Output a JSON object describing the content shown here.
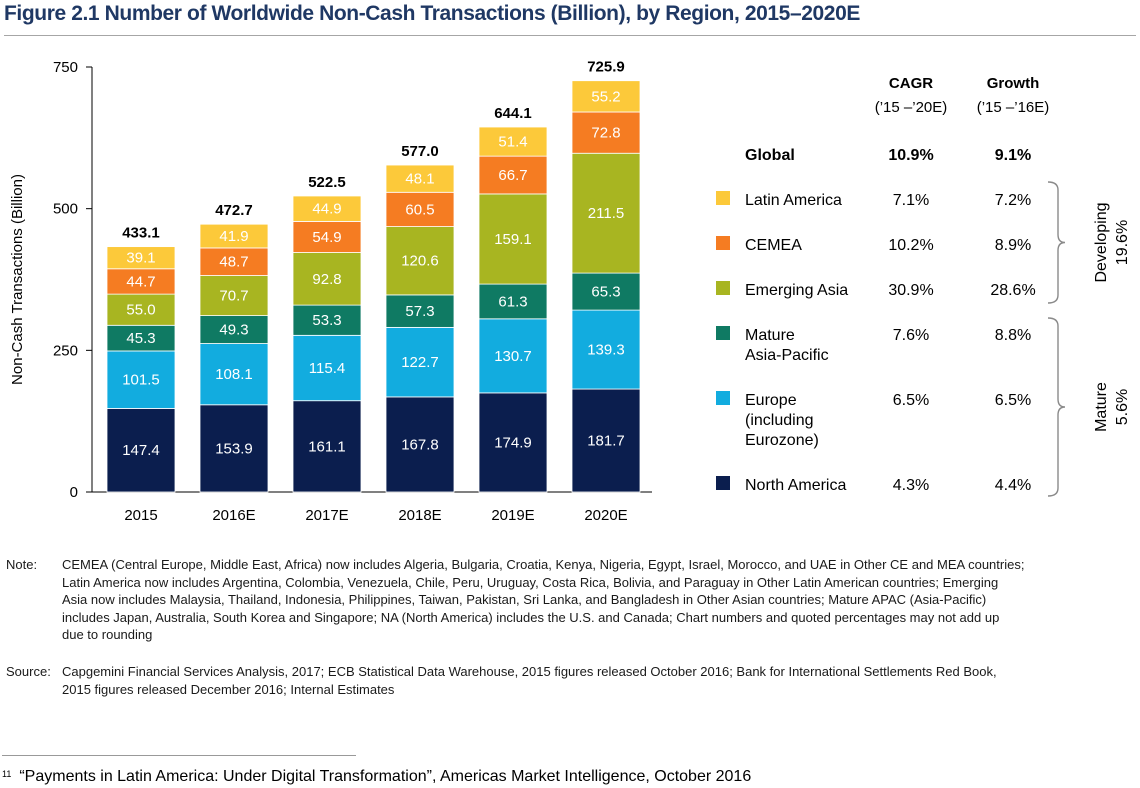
{
  "title": "Figure 2.1 Number of Worldwide Non-Cash Transactions (Billion), by Region, 2015–2020E",
  "colors": {
    "North America": "#0b1e4e",
    "Europe": "#12acdf",
    "Mature Asia-Pacific": "#0f7a63",
    "Emerging Asia": "#a8b521",
    "CEMEA": "#f57c22",
    "Latin America": "#fcc93a"
  },
  "chart_data": {
    "type": "bar",
    "stacked": true,
    "categories": [
      "2015",
      "2016E",
      "2017E",
      "2018E",
      "2019E",
      "2020E"
    ],
    "ylabel": "Non-Cash Transactions (Billion)",
    "ylim": [
      0,
      750
    ],
    "yticks": [
      0,
      250,
      500,
      750
    ],
    "totals": [
      "433.1",
      "472.7",
      "522.5",
      "577.0",
      "644.1",
      "725.9"
    ],
    "series": [
      {
        "name": "North America",
        "values": [
          147.4,
          153.9,
          161.1,
          167.8,
          174.9,
          181.7
        ]
      },
      {
        "name": "Europe",
        "values": [
          101.5,
          108.1,
          115.4,
          122.7,
          130.7,
          139.3
        ]
      },
      {
        "name": "Mature Asia-Pacific",
        "values": [
          45.3,
          49.3,
          53.3,
          57.3,
          61.3,
          65.3
        ]
      },
      {
        "name": "Emerging Asia",
        "values": [
          55.0,
          70.7,
          92.8,
          120.6,
          159.1,
          211.5
        ]
      },
      {
        "name": "CEMEA",
        "values": [
          44.7,
          48.7,
          54.9,
          60.5,
          66.7,
          72.8
        ]
      },
      {
        "name": "Latin America",
        "values": [
          39.1,
          41.9,
          44.9,
          48.1,
          51.4,
          55.2
        ]
      }
    ],
    "table": {
      "headers": [
        {
          "title": "CAGR",
          "sub": "(’15 –’20E)"
        },
        {
          "title": "Growth",
          "sub": "(’15 –’16E)"
        }
      ],
      "global": {
        "label": "Global",
        "cagr": "10.9%",
        "growth": "9.1%"
      },
      "rows": [
        {
          "series": "Latin America",
          "label": [
            "Latin America"
          ],
          "cagr": "7.1%",
          "growth": "7.2%"
        },
        {
          "series": "CEMEA",
          "label": [
            "CEMEA"
          ],
          "cagr": "10.2%",
          "growth": "8.9%"
        },
        {
          "series": "Emerging Asia",
          "label": [
            "Emerging Asia"
          ],
          "cagr": "30.9%",
          "growth": "28.6%"
        },
        {
          "series": "Mature Asia-Pacific",
          "label": [
            "Mature",
            "Asia-Pacific"
          ],
          "cagr": "7.6%",
          "growth": "8.8%"
        },
        {
          "series": "Europe",
          "label": [
            "Europe",
            "(including",
            "Eurozone)"
          ],
          "cagr": "6.5%",
          "growth": "6.5%"
        },
        {
          "series": "North America",
          "label": [
            "North America"
          ],
          "cagr": "4.3%",
          "growth": "4.4%"
        }
      ],
      "groups": [
        {
          "name": "Developing",
          "value": "19.6%"
        },
        {
          "name": "Mature",
          "value": "5.6%"
        }
      ]
    }
  },
  "note": {
    "label": "Note:",
    "lines": [
      "CEMEA (Central Europe, Middle East, Africa) now includes Algeria, Bulgaria, Croatia, Kenya, Nigeria, Egypt, Israel, Morocco, and UAE in Other CE and MEA countries;",
      "Latin America now includes Argentina, Colombia, Venezuela, Chile, Peru, Uruguay, Costa Rica, Bolivia, and Paraguay in Other Latin American countries; Emerging",
      "Asia now includes Malaysia, Thailand, Indonesia, Philippines, Taiwan, Pakistan, Sri Lanka, and Bangladesh in Other Asian countries; Mature APAC (Asia-Pacific)",
      "includes Japan, Australia, South Korea and Singapore; NA (North America) includes the U.S. and Canada; Chart numbers and quoted percentages may not add up",
      "due to rounding"
    ]
  },
  "source": {
    "label": "Source:",
    "lines": [
      "Capgemini Financial Services Analysis, 2017; ECB Statistical Data Warehouse, 2015 figures released October 2016; Bank for International Settlements Red Book,",
      "2015 figures released December 2016; Internal Estimates"
    ]
  },
  "footnote": {
    "number": "11",
    "text": "“Payments in Latin America: Under Digital Transformation”, Americas Market Intelligence, October 2016"
  }
}
